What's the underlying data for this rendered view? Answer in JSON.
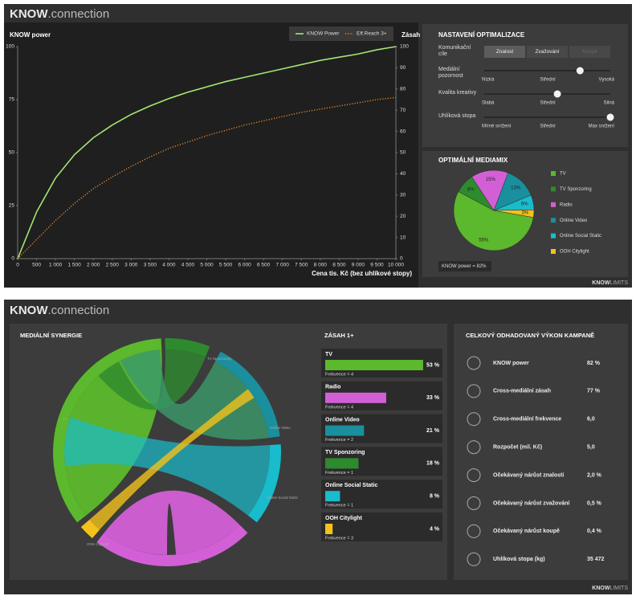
{
  "header": {
    "brand_bold": "KNOW",
    "brand_light": ".connection"
  },
  "footer": {
    "bold": "KNOW",
    "light": "LIMITS"
  },
  "chart_data": [
    {
      "type": "line",
      "title": "KNOW power",
      "xlabel": "Cena tis. Kč (bez uhlíkové stopy)",
      "y2label": "Zásah",
      "legend": "top-right",
      "x": [
        0,
        500,
        1000,
        1500,
        2000,
        2500,
        3000,
        3500,
        4000,
        4500,
        5000,
        5500,
        6000,
        6500,
        7000,
        7500,
        8000,
        8500,
        9000,
        9500,
        10000
      ],
      "xlim": [
        0,
        10000
      ],
      "xticks": [
        0,
        500,
        {
          "value": 1000,
          "label": "1 000"
        },
        {
          "value": 1500,
          "label": "1 500"
        },
        {
          "value": 2000,
          "label": "2 000"
        },
        {
          "value": 2500,
          "label": "2 500"
        },
        {
          "value": 3000,
          "label": "3 000"
        },
        {
          "value": 3500,
          "label": "3 500"
        },
        {
          "value": 4000,
          "label": "4 000"
        },
        {
          "value": 4500,
          "label": "4 500"
        },
        {
          "value": 5000,
          "label": "5 000"
        },
        {
          "value": 5500,
          "label": "5 500"
        },
        {
          "value": 6000,
          "label": "6 000"
        },
        {
          "value": 6500,
          "label": "6 500"
        },
        {
          "value": 7000,
          "label": "7 000"
        },
        {
          "value": 7500,
          "label": "7 500"
        },
        {
          "value": 8000,
          "label": "8 000"
        },
        {
          "value": 8500,
          "label": "8 500"
        },
        {
          "value": 9000,
          "label": "9 000"
        },
        {
          "value": 9500,
          "label": "9 500"
        },
        {
          "value": 10000,
          "label": "10 000"
        }
      ],
      "ylim": [
        0,
        100
      ],
      "yticks": [
        0,
        25,
        50,
        75,
        100
      ],
      "y2lim": [
        0,
        100
      ],
      "y2ticks": [
        0,
        10,
        20,
        30,
        40,
        50,
        60,
        70,
        80,
        90,
        100
      ],
      "series": [
        {
          "name": "KNOW Power",
          "color": "#a6e572",
          "style": "solid",
          "values": [
            0,
            22,
            38,
            49,
            57,
            63,
            68,
            72,
            75.5,
            78.5,
            81,
            83.5,
            85.5,
            87.5,
            89.5,
            91.5,
            93.5,
            95,
            96.5,
            98.5,
            100
          ]
        },
        {
          "name": "Eff.Reach 3+",
          "color": "#e8892a",
          "style": "dotted",
          "axis": "y2",
          "values": [
            0,
            9,
            18,
            26,
            33,
            38.5,
            43.5,
            48,
            52,
            55,
            58,
            60.5,
            63,
            65,
            67,
            69,
            70.5,
            72,
            73.5,
            75,
            76
          ]
        }
      ]
    },
    {
      "type": "pie",
      "title": "OPTIMÁLNÍ MEDIAMIX",
      "note": "KNOW power = 82%",
      "categories": [
        "TV",
        "TV Sponzoring",
        "Radio",
        "Online Video",
        "Online Social Static",
        "OOH Citylight"
      ],
      "values": [
        55,
        8,
        15,
        13,
        6,
        3
      ],
      "value_labels": [
        "55%",
        "8%",
        "15%",
        "13%",
        "6%",
        "3%"
      ],
      "colors": [
        "#5cb82c",
        "#2e8a2e",
        "#d35fd6",
        "#1a8f9e",
        "#19bccc",
        "#f3c21b"
      ]
    }
  ],
  "settings": {
    "title": "NASTAVENÍ OPTIMALIZACE",
    "goals": {
      "label": "Komunikační cíle",
      "options": [
        "Znalost",
        "Zvažování",
        "Koupě"
      ],
      "selected_index": 0,
      "disabled_index": 2
    },
    "sliders": [
      {
        "label": "Mediální pozornost",
        "stops": [
          "Nízká",
          "Střední",
          "Vysoká"
        ],
        "position": 0.76
      },
      {
        "label": "Kvalita kreativy",
        "stops": [
          "Slabá",
          "Střední",
          "Silná"
        ],
        "position": 0.58
      },
      {
        "label": "Uhlíková stopa",
        "stops": [
          "Mírné snížení",
          "Střední",
          "Max snížení"
        ],
        "position": 1
      }
    ]
  },
  "synergy": {
    "title": "MEDIÁLNÍ SYNERGIE",
    "labels": [
      "Tv",
      "TV Sponzoring",
      "Online Video",
      "Online Social Static",
      "Radio",
      "OOH Citylight"
    ]
  },
  "reach": {
    "title": "ZÁSAH 1+",
    "rows": [
      {
        "name": "TV",
        "value": 53,
        "value_label": "53 %",
        "frequency": "Frekvence = 4",
        "color": "#5cb82c"
      },
      {
        "name": "Radio",
        "value": 33,
        "value_label": "33 %",
        "frequency": "Frekvence = 4",
        "color": "#d35fd6"
      },
      {
        "name": "Online Video",
        "value": 21,
        "value_label": "21 %",
        "frequency": "Frekvence = 2",
        "color": "#1a8f9e"
      },
      {
        "name": "TV Sponzoring",
        "value": 18,
        "value_label": "18 %",
        "frequency": "Frekvence = 1",
        "color": "#2e8a2e"
      },
      {
        "name": "Online Social Static",
        "value": 8,
        "value_label": "8 %",
        "frequency": "Frekvence = 1",
        "color": "#19bccc"
      },
      {
        "name": "OOH Citylight",
        "value": 4,
        "value_label": "4 %",
        "frequency": "Frekvence = 3",
        "color": "#f3c21b"
      }
    ]
  },
  "performance": {
    "title": "CELKOVÝ ODHADOVANÝ VÝKON KAMPANĚ",
    "rows": [
      {
        "label": "KNOW power",
        "value": "82 %"
      },
      {
        "label": "Cross-mediální zásah",
        "value": "77 %"
      },
      {
        "label": "Cross-mediální frekvence",
        "value": "6,0"
      },
      {
        "label": "Rozpočet (mil. Kč)",
        "value": "5,0"
      },
      {
        "label": "Očekávaný nárůst znalosti",
        "value": "2,0 %"
      },
      {
        "label": "Očekávaný nárůst zvažování",
        "value": "0,5 %"
      },
      {
        "label": "Očekávaný nárůst koupě",
        "value": "0,4 %"
      },
      {
        "label": "Uhlíková stopa (kg)",
        "value": "35 472"
      }
    ]
  }
}
